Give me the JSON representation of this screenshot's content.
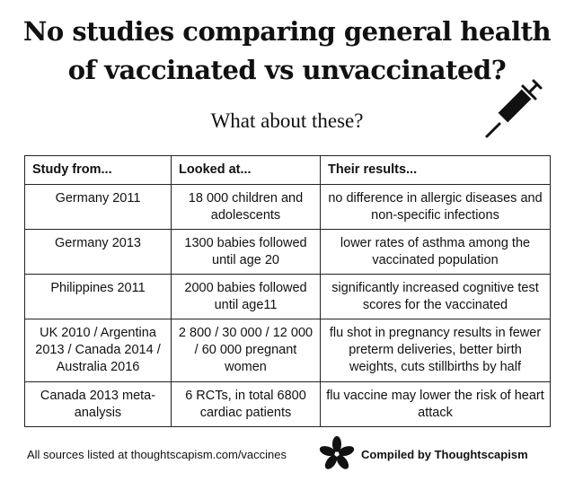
{
  "header": {
    "title": "No studies comparing general health of vaccinated vs unvaccinated?",
    "subtitle": "What about these?"
  },
  "table": {
    "columns": [
      "Study from...",
      "Looked at...",
      "Their results..."
    ],
    "rows": [
      [
        "Germany 2011",
        "18 000 children and adolescents",
        "no difference in allergic diseases and non-specific infections"
      ],
      [
        "Germany 2013",
        "1300 babies followed until age 20",
        "lower rates of asthma among the vaccinated population"
      ],
      [
        "Philippines 2011",
        "2000 babies followed until age11",
        "significantly increased cognitive test scores for the vaccinated"
      ],
      [
        "UK 2010 / Argentina 2013 / Canada 2014 / Australia 2016",
        "2 800 / 30 000 / 12 000 / 60 000 pregnant women",
        "flu shot in pregnancy results in fewer preterm deliveries, better birth weights, cuts stillbirths by half"
      ],
      [
        "Canada 2013 meta-analysis",
        "6 RCTs, in total 6800 cardiac patients",
        "flu vaccine may lower the risk of heart attack"
      ]
    ]
  },
  "footer": {
    "sources": "All sources listed at thoughtscapism.com/vaccines",
    "credit": "Compiled by Thoughtscapism"
  }
}
